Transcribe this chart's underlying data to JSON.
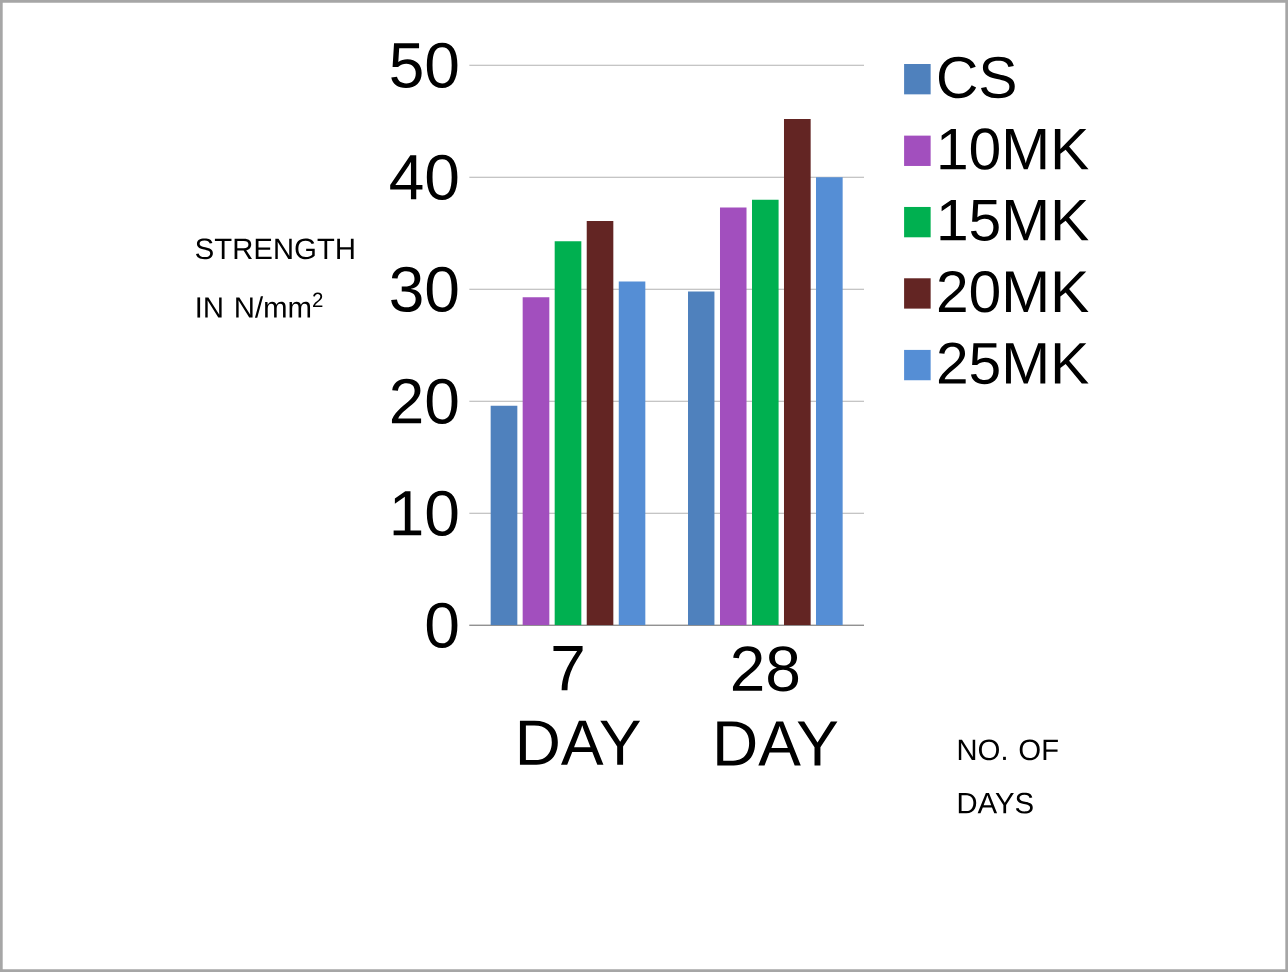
{
  "chart_data": {
    "type": "bar",
    "categories": [
      "7 DAY",
      "28 DAY"
    ],
    "series": [
      {
        "name": "CS",
        "color": "#4f81bd",
        "values": [
          19.6,
          29.8
        ]
      },
      {
        "name": "10MK",
        "color": "#a24fbe",
        "values": [
          29.3,
          37.3
        ]
      },
      {
        "name": "15MK",
        "color": "#00b050",
        "values": [
          34.3,
          38.0
        ]
      },
      {
        "name": "20MK",
        "color": "#632523",
        "values": [
          36.1,
          45.2
        ]
      },
      {
        "name": "25MK",
        "color": "#558ed5",
        "values": [
          30.7,
          40.0
        ]
      }
    ],
    "ylabel": "STRENGTH IN N/mm$^{2}$",
    "xlabel": "NO. OF DAYS",
    "ylim": [
      0,
      50
    ],
    "yticks": [
      0,
      10,
      20,
      30,
      40,
      50
    ],
    "grid": "y",
    "legend": "right"
  }
}
